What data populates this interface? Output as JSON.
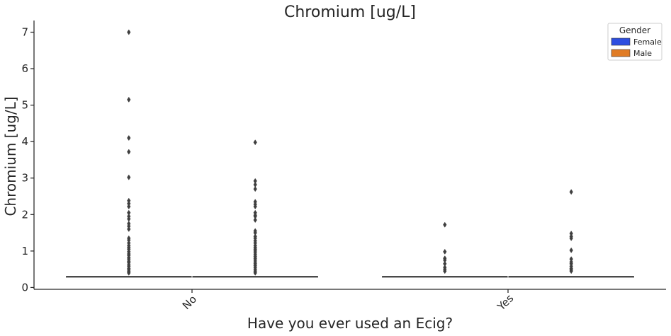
{
  "chart_data": {
    "type": "box",
    "title": "Chromium [ug/L]",
    "xlabel": "Have you ever used an Ecig?",
    "ylabel": "Chromium [ug/L]",
    "categories": [
      "No",
      "Yes"
    ],
    "ylim": [
      -0.05,
      7.32
    ],
    "yticks": [
      0,
      1,
      2,
      3,
      4,
      5,
      6,
      7
    ],
    "grid": false,
    "legend": {
      "title": "Gender",
      "placement": "top-right"
    },
    "series": [
      {
        "name": "Female",
        "color": "#2d4ee0",
        "boxes": [
          {
            "category": "No",
            "median": 0.3,
            "q1": 0.3,
            "q3": 0.3,
            "whisker_low": 0.3,
            "whisker_high": 0.3,
            "outliers": [
              7.0,
              5.15,
              4.1,
              3.72,
              3.02,
              2.38,
              2.3,
              2.22,
              2.05,
              1.95,
              1.88,
              1.75,
              1.68,
              1.6,
              1.35,
              1.3,
              1.22,
              1.15,
              1.1,
              1.05,
              0.98,
              0.92,
              0.88,
              0.82,
              0.78,
              0.72,
              0.68,
              0.62,
              0.58,
              0.52,
              0.48,
              0.44,
              0.4
            ]
          },
          {
            "category": "Yes",
            "median": 0.3,
            "q1": 0.3,
            "q3": 0.3,
            "whisker_low": 0.3,
            "whisker_high": 0.3,
            "outliers": [
              1.72,
              0.98,
              0.8,
              0.75,
              0.65,
              0.55,
              0.5,
              0.45
            ]
          }
        ]
      },
      {
        "name": "Male",
        "color": "#e07b24",
        "boxes": [
          {
            "category": "No",
            "median": 0.3,
            "q1": 0.3,
            "q3": 0.3,
            "whisker_low": 0.3,
            "whisker_high": 0.3,
            "outliers": [
              3.98,
              2.92,
              2.82,
              2.7,
              2.35,
              2.28,
              2.22,
              2.05,
              1.98,
              1.95,
              1.85,
              1.55,
              1.5,
              1.4,
              1.35,
              1.28,
              1.22,
              1.15,
              1.1,
              1.05,
              1.0,
              0.95,
              0.9,
              0.85,
              0.8,
              0.75,
              0.7,
              0.65,
              0.6,
              0.55,
              0.5,
              0.45,
              0.4
            ]
          },
          {
            "category": "Yes",
            "median": 0.3,
            "q1": 0.3,
            "q3": 0.3,
            "whisker_low": 0.3,
            "whisker_high": 0.3,
            "outliers": [
              2.62,
              1.48,
              1.4,
              1.35,
              1.02,
              0.78,
              0.7,
              0.65,
              0.58,
              0.52,
              0.48,
              0.45
            ]
          }
        ]
      }
    ]
  }
}
